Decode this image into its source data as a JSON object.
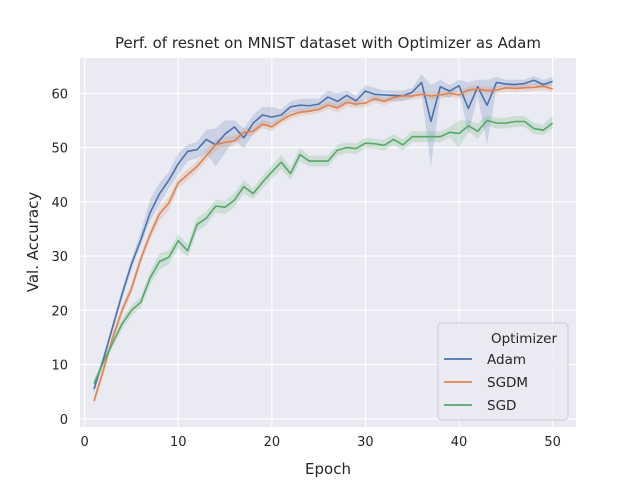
{
  "chart_data": {
    "type": "line",
    "title": "Perf. of resnet on MNIST dataset with Optimizer as Adam",
    "xlabel": "Epoch",
    "ylabel": "Val. Accuracy",
    "xlim": [
      -0.5,
      52.5
    ],
    "ylim": [
      -1.5,
      66.5
    ],
    "xticks": [
      0,
      10,
      20,
      30,
      40,
      50
    ],
    "yticks": [
      0,
      10,
      20,
      30,
      40,
      50,
      60
    ],
    "grid": true,
    "legend": {
      "title": "Optimizer",
      "position": "bottom-right"
    },
    "x": [
      1,
      2,
      3,
      4,
      5,
      6,
      7,
      8,
      9,
      10,
      11,
      12,
      13,
      14,
      15,
      16,
      17,
      18,
      19,
      20,
      21,
      22,
      23,
      24,
      25,
      26,
      27,
      28,
      29,
      30,
      31,
      32,
      33,
      34,
      35,
      36,
      37,
      38,
      39,
      40,
      41,
      42,
      43,
      44,
      45,
      46,
      47,
      48,
      49,
      50
    ],
    "series": [
      {
        "name": "Adam",
        "color": "#4c72b0",
        "values": [
          5.5,
          11,
          17,
          23,
          28.5,
          33,
          38,
          41.5,
          44,
          47,
          49.3,
          49.6,
          51.5,
          50.5,
          52.5,
          53.8,
          51.8,
          54.5,
          56,
          55.6,
          56,
          57.5,
          57.8,
          57.7,
          58,
          59.3,
          58.5,
          59.6,
          58.6,
          60.4,
          59.8,
          59.7,
          59.6,
          59.5,
          60.2,
          62,
          54.8,
          61.2,
          60.4,
          61.4,
          57.2,
          61.2,
          57.8,
          62,
          61.7,
          61.6,
          61.8,
          62.4,
          61.6,
          62.2
        ],
        "lower": [
          4.7,
          10.3,
          16.2,
          22,
          27.5,
          32,
          36.5,
          39.5,
          42.5,
          45,
          47.5,
          48,
          49,
          46.5,
          49,
          51.5,
          49.8,
          52.5,
          54,
          54,
          55,
          56.5,
          56.5,
          56.5,
          57,
          58,
          57,
          58.5,
          57.5,
          59,
          58.5,
          58.5,
          58.5,
          58.5,
          59.2,
          60,
          46.5,
          59.5,
          59.2,
          60.5,
          52.5,
          59.5,
          50.5,
          61,
          61,
          61,
          61,
          61.5,
          61,
          61.5
        ],
        "upper": [
          6.3,
          11.7,
          17.8,
          24,
          29.5,
          34.5,
          40.5,
          43.5,
          45.5,
          49,
          50.5,
          51,
          53.3,
          53.5,
          55,
          55,
          53.5,
          56,
          57.5,
          57.5,
          57,
          58.5,
          59,
          59,
          59,
          60.5,
          60,
          60.5,
          59.5,
          61.5,
          61,
          60.5,
          60.5,
          60.5,
          61,
          63.5,
          61.5,
          62.5,
          61.5,
          62.5,
          62,
          62.5,
          62.5,
          63,
          62.5,
          62.5,
          62.5,
          63.2,
          62.5,
          63
        ]
      },
      {
        "name": "SGDM",
        "color": "#dd8452",
        "values": [
          3.3,
          9,
          15,
          20,
          24,
          29.5,
          34,
          37.8,
          39.8,
          43.5,
          45,
          46.5,
          48.5,
          50.5,
          51,
          51.2,
          52.8,
          53,
          54.3,
          53.8,
          55,
          56,
          56.5,
          56.7,
          57,
          57.8,
          57.3,
          58.3,
          58,
          58.2,
          59,
          58.5,
          59.2,
          59.5,
          59.5,
          59.8,
          59.5,
          59.7,
          60,
          59.7,
          60.6,
          60.8,
          60.5,
          60.6,
          61,
          60.9,
          61,
          61.1,
          61.3,
          60.8
        ],
        "lower": [
          2.5,
          8,
          14,
          19,
          23,
          28.5,
          33,
          36.5,
          38.5,
          42.5,
          44,
          45.5,
          47.5,
          49.5,
          50,
          50.3,
          52,
          52.2,
          53.5,
          53,
          54.3,
          55.3,
          55.8,
          56,
          56.3,
          57,
          56.5,
          57.5,
          57.3,
          57.5,
          58.3,
          57.8,
          58.5,
          58.8,
          58.8,
          59.1,
          58.8,
          59,
          59.3,
          59,
          59.9,
          60.1,
          59.8,
          59.9,
          60.3,
          60.2,
          60.3,
          60.4,
          60.6,
          60.1
        ],
        "upper": [
          4.1,
          10,
          16,
          21,
          25,
          30.5,
          35,
          39,
          41,
          44.5,
          46,
          47.5,
          49.5,
          51.5,
          52,
          52.1,
          53.6,
          53.8,
          55.1,
          54.6,
          55.7,
          56.7,
          57.2,
          57.4,
          57.7,
          58.6,
          58.1,
          59.1,
          58.7,
          58.9,
          59.7,
          59.2,
          59.9,
          60.2,
          60.2,
          60.5,
          60.2,
          60.4,
          60.7,
          60.4,
          61.3,
          61.5,
          61.2,
          61.3,
          61.7,
          61.6,
          61.7,
          61.8,
          62,
          61.5
        ]
      },
      {
        "name": "SGD",
        "color": "#55a868",
        "values": [
          6.5,
          10.5,
          14,
          17.5,
          20,
          21.5,
          26,
          29,
          29.8,
          32.8,
          31,
          35.8,
          37,
          39.2,
          39,
          40.3,
          42.8,
          41.5,
          43.6,
          45.5,
          47.3,
          45.2,
          48.7,
          47.5,
          47.5,
          47.5,
          49.5,
          50,
          49.8,
          50.8,
          50.7,
          50.4,
          51.5,
          50.5,
          52,
          52,
          52,
          52,
          52.8,
          52.6,
          54,
          53,
          55,
          54.5,
          54.5,
          54.8,
          54.8,
          53.5,
          53.2,
          54.5
        ],
        "lower": [
          5.8,
          9.8,
          13.2,
          16.5,
          19,
          20.5,
          24.8,
          27.5,
          28.5,
          31.5,
          29.8,
          34.5,
          35.8,
          38,
          37.8,
          39,
          41.5,
          40.5,
          42.5,
          44.3,
          46,
          44,
          47.5,
          46.5,
          46.5,
          46.5,
          48.5,
          49,
          48.8,
          49.8,
          49.8,
          49.4,
          50.5,
          49.5,
          51,
          51,
          51,
          51,
          51.8,
          50,
          53,
          51.5,
          54,
          53.5,
          53.5,
          53.8,
          53.8,
          52.5,
          52.3,
          53.5
        ],
        "upper": [
          7.2,
          11.2,
          14.8,
          18.5,
          21,
          22.5,
          27.2,
          30.5,
          31,
          34,
          32.2,
          37,
          38.2,
          40.4,
          40.2,
          41.6,
          44,
          42.5,
          44.7,
          46.7,
          48.6,
          46.4,
          49.9,
          48.5,
          48.5,
          48.5,
          50.5,
          51,
          50.8,
          51.8,
          51.6,
          51.4,
          52.5,
          51.5,
          53,
          53,
          53,
          53,
          53.8,
          55,
          55,
          54.5,
          56,
          55.5,
          55.5,
          55.8,
          55.8,
          54.5,
          54.2,
          56
        ]
      }
    ]
  }
}
